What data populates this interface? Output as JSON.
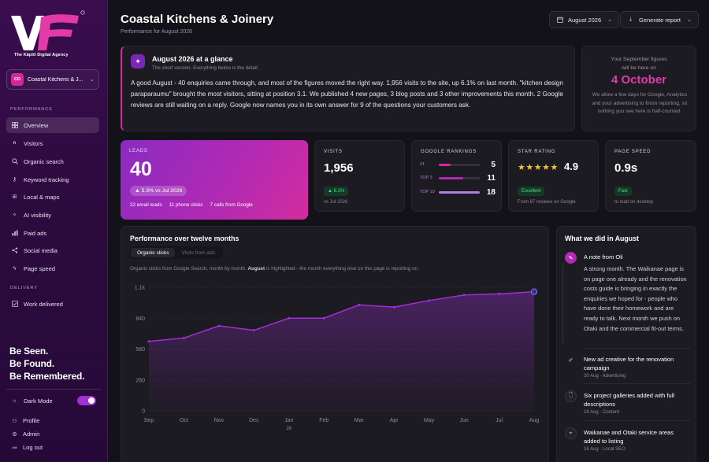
{
  "sidebar": {
    "agency": "The Kāpiti Digital Agency",
    "client": {
      "initials": "CO",
      "name": "Coastal Kitchens & J..."
    },
    "performance_label": "PERFORMANCE",
    "performance_items": [
      {
        "label": "Overview",
        "icon": "grid-icon",
        "active": true
      },
      {
        "label": "Visitors",
        "icon": "users-icon"
      },
      {
        "label": "Organic search",
        "icon": "search-icon"
      },
      {
        "label": "Keyword tracking",
        "icon": "key-icon"
      },
      {
        "label": "Local & maps",
        "icon": "map-icon"
      },
      {
        "label": "AI visibility",
        "icon": "sparkle-icon"
      },
      {
        "label": "Paid ads",
        "icon": "bar-chart-icon"
      },
      {
        "label": "Social media",
        "icon": "share-icon"
      },
      {
        "label": "Page speed",
        "icon": "bolt-icon"
      }
    ],
    "delivery_label": "DELIVERY",
    "delivery_items": [
      {
        "label": "Work delivered",
        "icon": "check-square-icon"
      }
    ],
    "slogan": [
      "Be Seen.",
      "Be Found.",
      "Be Remembered."
    ],
    "dark_mode_label": "Dark Mode",
    "dark_mode_on": true,
    "bottom_items": [
      {
        "label": "Profile",
        "icon": "profile-icon"
      },
      {
        "label": "Admin",
        "icon": "admin-icon"
      },
      {
        "label": "Log out",
        "icon": "logout-icon"
      }
    ]
  },
  "header": {
    "title": "Coastal Kitchens & Joinery",
    "subtitle": "Performance for August 2026",
    "month_button": "August 2026",
    "report_button": "Generate report"
  },
  "summary": {
    "title": "August 2026 at a glance",
    "subtitle": "The short version. Everything below is the detail.",
    "body": "A good August - 40 enquiries came through, and most of the figures moved the right way. 1,956 visits to the site, up 6.1% on last month. \"kitchen design paraparaumu\" brought the most visitors, sitting at position 3.1. We published 4 new pages, 3 blog posts and 3 other improvements this month. 2 Google reviews are still waiting on a reply. Google now names you in its own answer for 9 of the questions your customers ask."
  },
  "next_report": {
    "line1": "Your September figures",
    "line2": "will be here on",
    "date": "4 October",
    "note": "We allow a few days for Google, Analytics and your advertising to finish reporting, so nothing you see here is half-counted."
  },
  "kpis": {
    "leads": {
      "label": "LEADS",
      "value": "40",
      "change": "▲ 5.3% vs Jul 2026",
      "breakdown": [
        "22 email leads",
        "11 phone clicks",
        "7 calls from Google"
      ]
    },
    "visits": {
      "label": "VISITS",
      "value": "1,956",
      "change": "▲ 6.1%",
      "foot": "vs Jul 2026"
    },
    "rankings": {
      "label": "GOOGLE RANKINGS",
      "rows": [
        {
          "label": "#1",
          "value": 5,
          "fill": 0.28,
          "color": "#d6279a"
        },
        {
          "label": "TOP 3",
          "value": 11,
          "fill": 0.6,
          "color": "#b02ab4"
        },
        {
          "label": "TOP 10",
          "value": 18,
          "fill": 1.0,
          "color": "#b07ee0"
        }
      ]
    },
    "rating": {
      "label": "STAR RATING",
      "stars": "★★★★★",
      "value": "4.9",
      "badge": "Excellent",
      "foot": "From 87 reviews on Google"
    },
    "speed": {
      "label": "PAGE SPEED",
      "value": "0.9s",
      "badge": "Fast",
      "foot": "to load on desktop"
    }
  },
  "chart": {
    "title": "Performance over twelve months",
    "tabs": [
      "Organic clicks",
      "Visits from ads"
    ],
    "caption_pre": "Organic clicks from Google Search, month by month.",
    "caption_bold": "August",
    "caption_post": "is highlighted - the month everything else on this page is reporting on."
  },
  "chart_data": {
    "type": "area",
    "categories": [
      "Sep",
      "Oct",
      "Nov",
      "Dec",
      "Jan",
      "Feb",
      "Mar",
      "Apr",
      "May",
      "Jun",
      "Jul",
      "Aug"
    ],
    "year_label": "26",
    "values": [
      630,
      660,
      770,
      730,
      840,
      840,
      960,
      940,
      1000,
      1050,
      1060,
      1080
    ],
    "yticks": [
      0,
      280,
      560,
      840,
      1120
    ],
    "ytick_labels": [
      "0",
      "280",
      "560",
      "840",
      "1.1k"
    ],
    "ylim": [
      0,
      1120
    ],
    "highlight": "Aug",
    "color": "#a02fd6"
  },
  "activity": {
    "title": "What we did in August",
    "note": {
      "heading": "A note from Oli",
      "body": "A strong month. The Waikanae page is on page one already and the renovation costs guide is bringing in exactly the enquiries we hoped for - people who have done their homework and are ready to talk. Next month we push on Otaki and the commercial fit-out terms."
    },
    "items": [
      {
        "heading": "New ad creative for the renovation campaign",
        "meta": "20 Aug · Advertising",
        "icon": "megaphone-icon"
      },
      {
        "heading": "Six project galleries added with full descriptions",
        "meta": "18 Aug · Content",
        "icon": "document-icon"
      },
      {
        "heading": "Waikanae and Otaki service areas added to listing",
        "meta": "16 Aug · Local SEO",
        "icon": "location-icon"
      }
    ]
  }
}
